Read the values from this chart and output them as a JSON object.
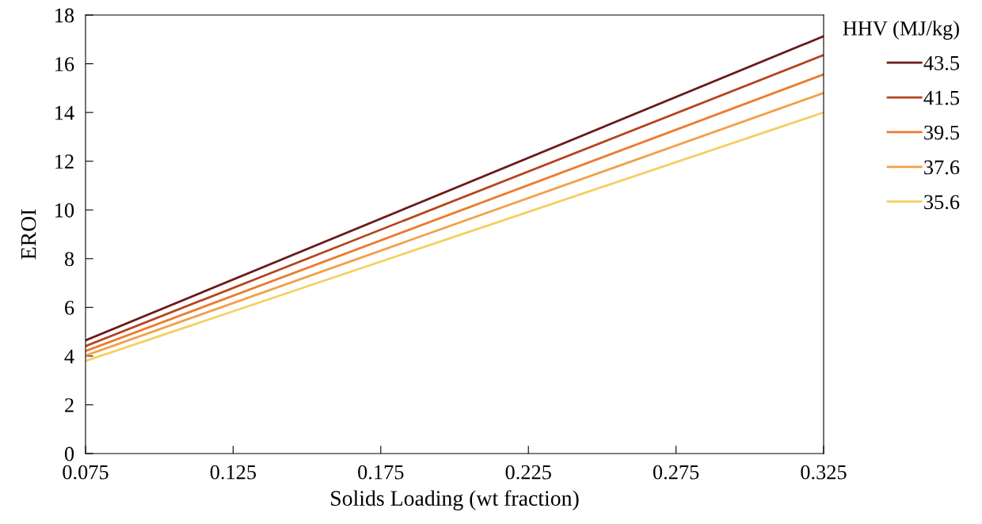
{
  "chart_data": {
    "type": "line",
    "xlabel": "Solids Loading (wt fraction)",
    "ylabel": "EROI",
    "legend_title": "HHV (MJ/kg)",
    "legend": "top right",
    "grid": false,
    "marker": "none",
    "line_style": "solid",
    "x": [
      0.075,
      0.325
    ],
    "xlim": [
      0.075,
      0.325
    ],
    "xticks": [
      {
        "value": 0.075,
        "label": "0.075"
      },
      {
        "value": 0.125,
        "label": "0.125"
      },
      {
        "value": 0.175,
        "label": "0.175"
      },
      {
        "value": 0.225,
        "label": "0.225"
      },
      {
        "value": 0.275,
        "label": "0.275"
      },
      {
        "value": 0.325,
        "label": "0.325"
      }
    ],
    "ylim": [
      0,
      18
    ],
    "yticks": [
      0,
      2,
      4,
      6,
      8,
      10,
      12,
      14,
      16,
      18
    ],
    "series": [
      {
        "name": "43.5",
        "color": "#6b1a1a",
        "values": [
          4.65,
          17.13
        ]
      },
      {
        "name": "41.5",
        "color": "#b5441e",
        "values": [
          4.41,
          16.36
        ]
      },
      {
        "name": "39.5",
        "color": "#ec7a2c",
        "values": [
          4.21,
          15.56
        ]
      },
      {
        "name": "37.6",
        "color": "#f2a04a",
        "values": [
          4.02,
          14.8
        ]
      },
      {
        "name": "35.6",
        "color": "#f5cf5f",
        "values": [
          3.8,
          14.0
        ]
      }
    ]
  }
}
